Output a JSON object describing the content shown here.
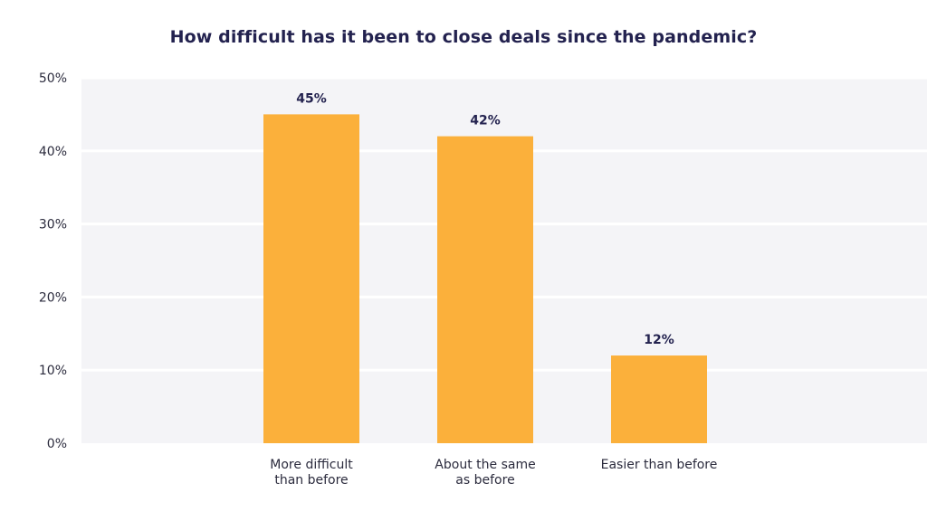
{
  "chart_data": {
    "type": "bar",
    "title": "How difficult has it been to close deals since the pandemic?",
    "categories": [
      [
        "More difficult",
        "than before"
      ],
      [
        "About the same",
        "as before"
      ],
      [
        "Easier than before"
      ]
    ],
    "values": [
      45,
      42,
      12
    ],
    "data_labels": [
      "45%",
      "42%",
      "12%"
    ],
    "yticks": [
      0,
      10,
      20,
      30,
      40,
      50
    ],
    "ytick_labels": [
      "0%",
      "10%",
      "20%",
      "30%",
      "40%",
      "50%"
    ],
    "ylim": [
      0,
      50
    ],
    "xlabel": "",
    "ylabel": "",
    "grid": true,
    "legend": "none",
    "colors": {
      "bar": "#fbb03b",
      "plot_background": "#f4f4f7",
      "gridline": "#ffffff",
      "title": "#23224f",
      "tick_text": "#2b2b3d",
      "data_label": "#23224f"
    }
  }
}
